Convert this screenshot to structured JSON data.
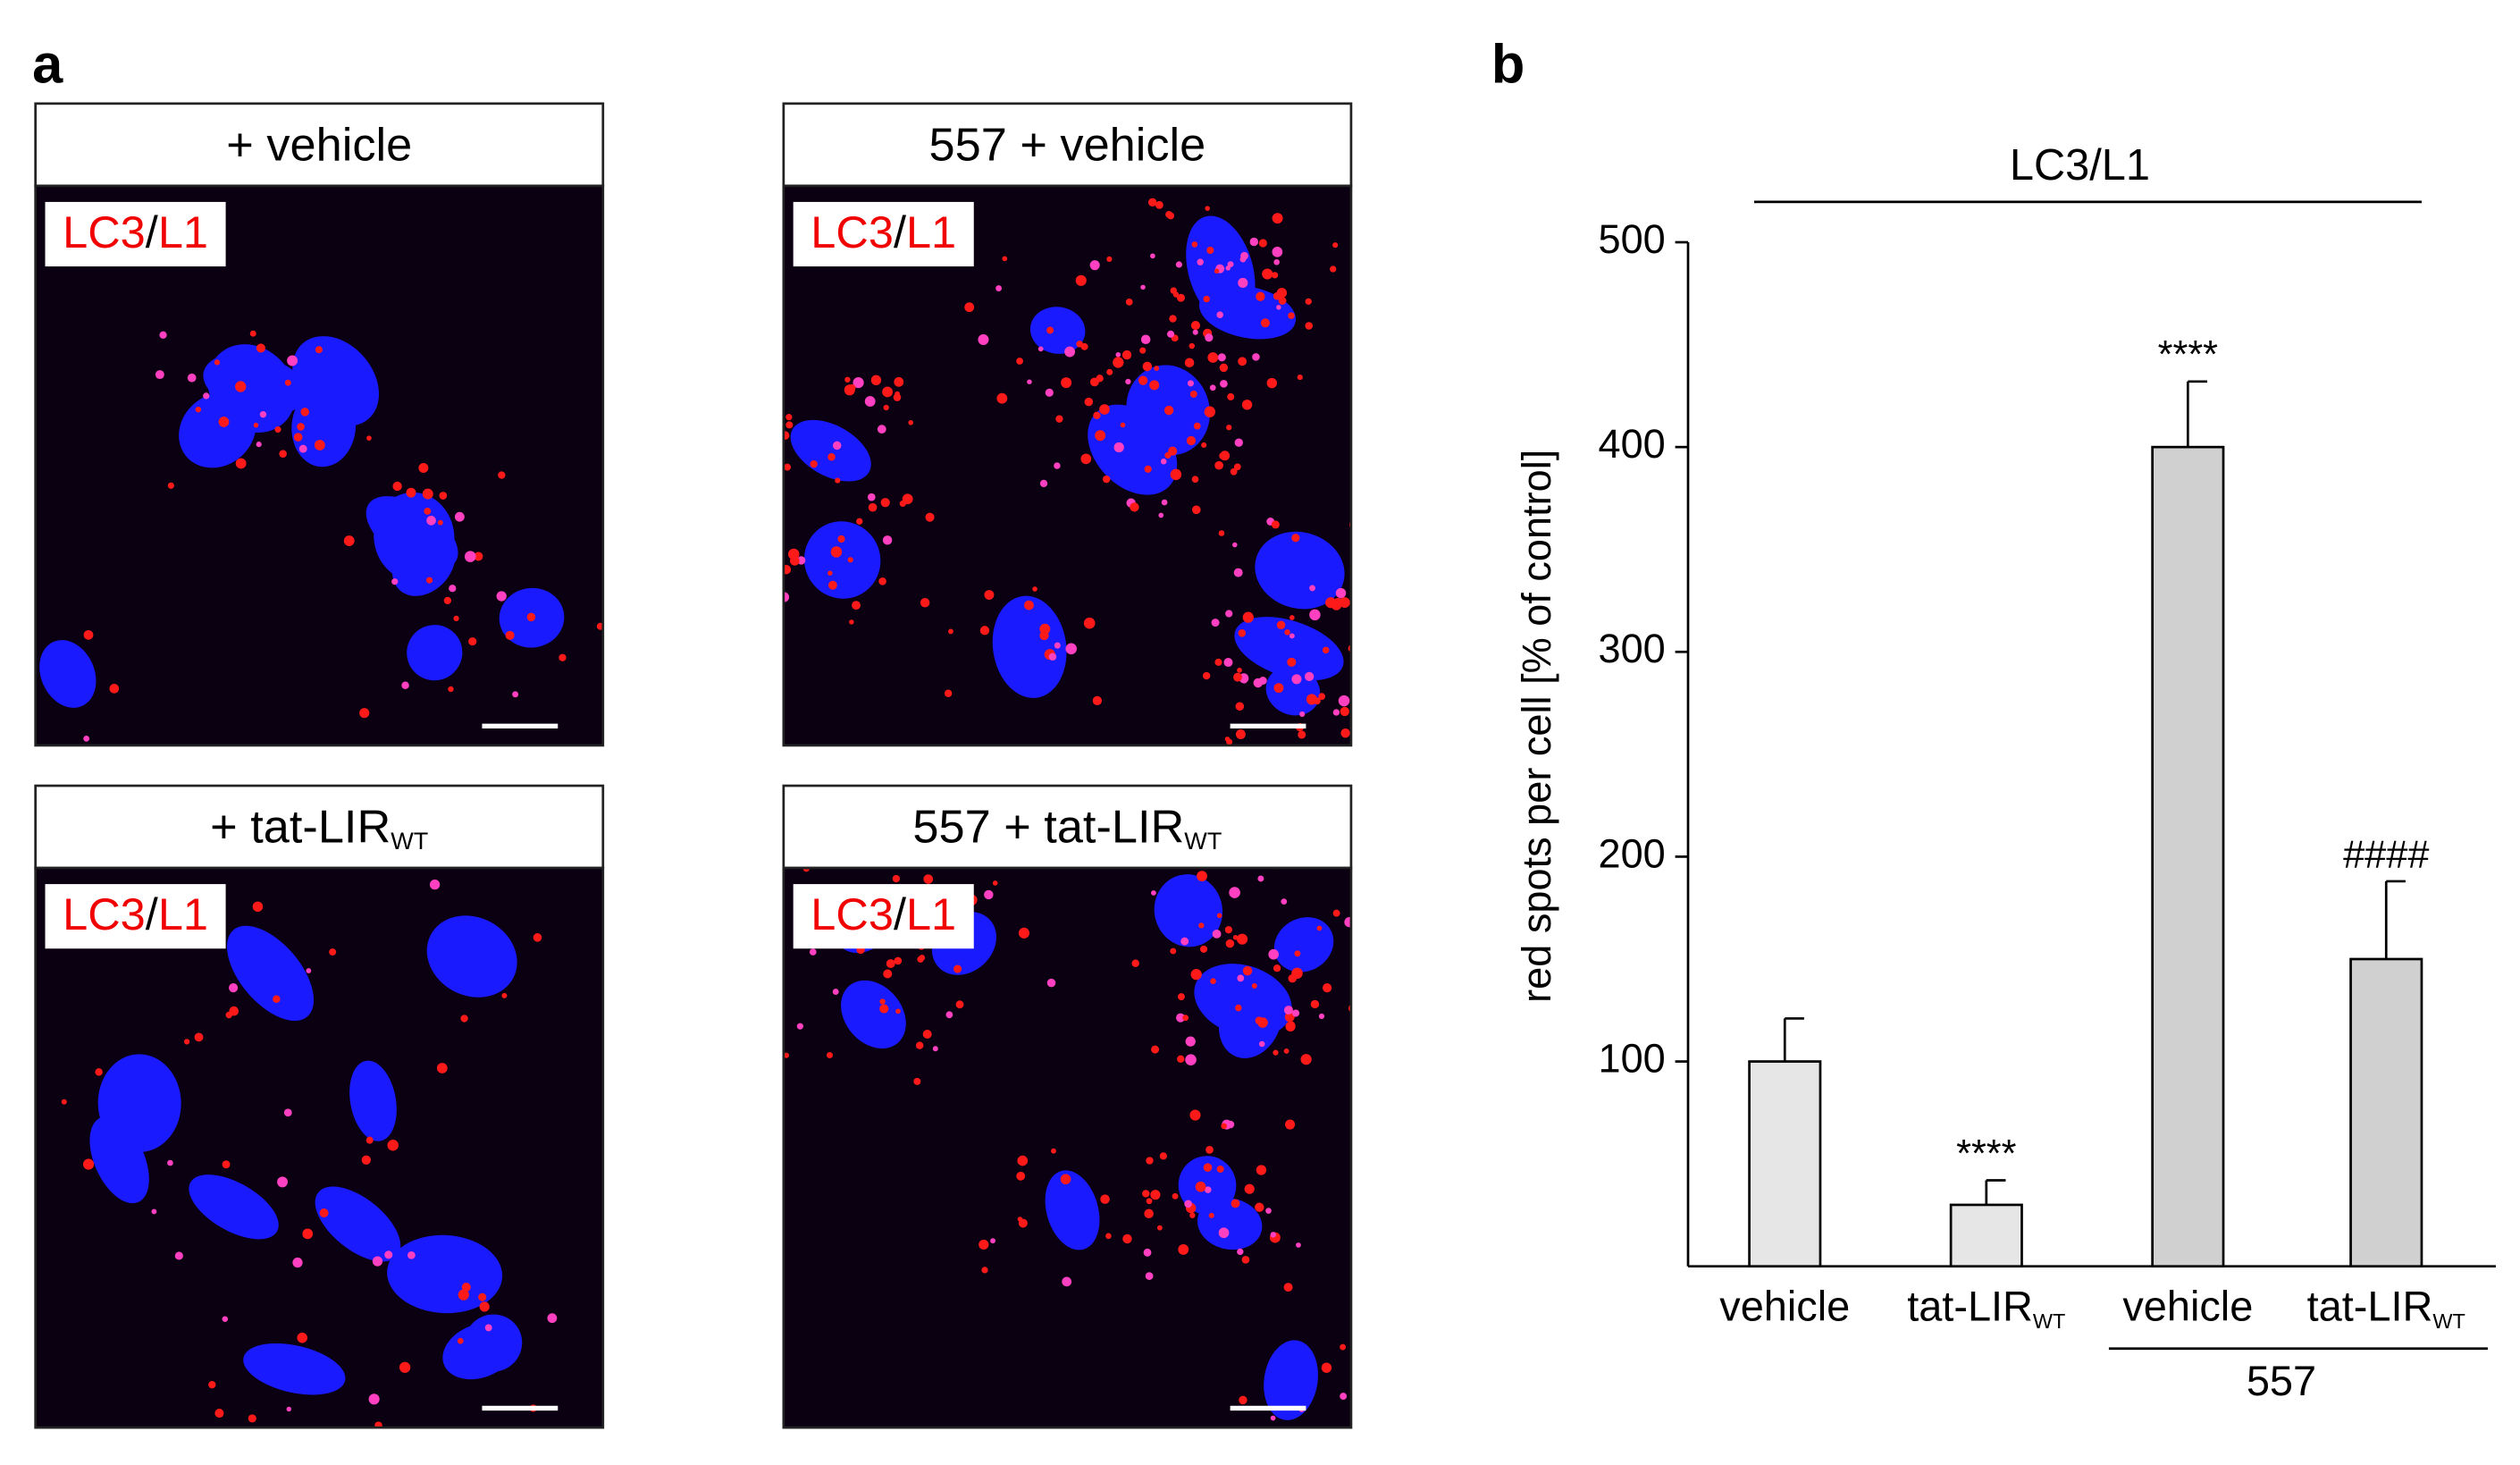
{
  "panel_a": {
    "label": "a",
    "images": [
      {
        "title": "+ vehicle",
        "title_sub": null,
        "stain": [
          "LC3",
          "/",
          "L1"
        ]
      },
      {
        "title": "557 + vehicle",
        "title_sub": null,
        "stain": [
          "LC3",
          "/",
          "L1"
        ]
      },
      {
        "title": "+ tat-LIR",
        "title_sub": "WT",
        "stain": [
          "LC3",
          "/",
          "L1"
        ]
      },
      {
        "title": "557 + tat-LIR",
        "title_sub": "WT",
        "stain": [
          "LC3",
          "/",
          "L1"
        ]
      }
    ]
  },
  "chart_data": {
    "type": "bar",
    "panel_label": "b",
    "title": "LC3/L1",
    "ylabel": "red spots per cell [% of control]",
    "categories": [
      "vehicle",
      "tat-LIR",
      "vehicle",
      "tat-LIR"
    ],
    "category_subscripts": [
      null,
      "WT",
      null,
      "WT"
    ],
    "group_label": "557",
    "values": [
      100,
      30,
      400,
      150
    ],
    "errors": [
      21,
      12,
      32,
      38
    ],
    "colors": [
      "#e6e6e6",
      "#e6e6e6",
      "#d0d0d0",
      "#d0d0d0"
    ],
    "annotations": [
      null,
      "****",
      "****",
      "####"
    ],
    "ylim": [
      0,
      500
    ],
    "yticks": [
      100,
      200,
      300,
      400,
      500
    ]
  }
}
